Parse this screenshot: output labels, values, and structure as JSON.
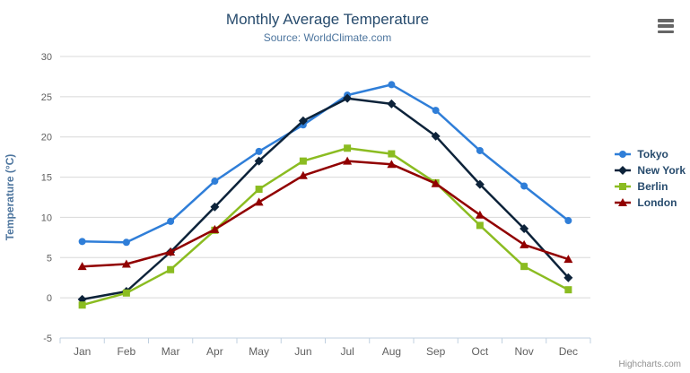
{
  "chart_data": {
    "type": "line",
    "title": "Monthly Average Temperature",
    "subtitle": "Source: WorldClimate.com",
    "xlabel": "",
    "ylabel": "Temperature (°C)",
    "categories": [
      "Jan",
      "Feb",
      "Mar",
      "Apr",
      "May",
      "Jun",
      "Jul",
      "Aug",
      "Sep",
      "Oct",
      "Nov",
      "Dec"
    ],
    "ylim": [
      -5,
      30
    ],
    "yticks": [
      -5,
      0,
      5,
      10,
      15,
      20,
      25,
      30
    ],
    "grid": true,
    "legend_position": "right",
    "series": [
      {
        "name": "Tokyo",
        "color": "#2f7ed8",
        "marker": "circle",
        "values": [
          7.0,
          6.9,
          9.5,
          14.5,
          18.2,
          21.5,
          25.2,
          26.5,
          23.3,
          18.3,
          13.9,
          9.6
        ]
      },
      {
        "name": "New York",
        "color": "#0d233a",
        "marker": "diamond",
        "values": [
          -0.2,
          0.8,
          5.7,
          11.3,
          17.0,
          22.0,
          24.8,
          24.1,
          20.1,
          14.1,
          8.6,
          2.5
        ]
      },
      {
        "name": "Berlin",
        "color": "#8bbc21",
        "marker": "square",
        "values": [
          -0.9,
          0.6,
          3.5,
          8.4,
          13.5,
          17.0,
          18.6,
          17.9,
          14.3,
          9.0,
          3.9,
          1.0
        ]
      },
      {
        "name": "London",
        "color": "#910000",
        "marker": "triangle",
        "values": [
          3.9,
          4.2,
          5.7,
          8.5,
          11.9,
          15.2,
          17.0,
          16.6,
          14.2,
          10.3,
          6.6,
          4.8
        ]
      }
    ]
  },
  "credits": "Highcharts.com",
  "colors": {
    "title": "#274b6d",
    "subtitle": "#4d759e",
    "axis_title": "#4d759e",
    "tick_label": "#606060",
    "gridline": "#d8d8d8",
    "axis_line": "#c0d0e0",
    "legend_text": "#274b6d",
    "credits_text": "#909090",
    "menu_icon": "#666666"
  }
}
